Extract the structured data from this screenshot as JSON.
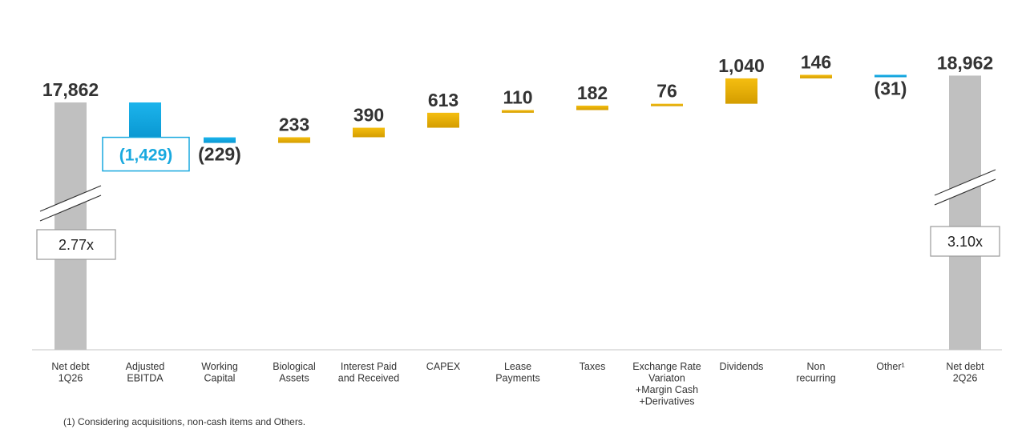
{
  "chart_data": {
    "type": "bar",
    "subtype": "waterfall",
    "title": "",
    "xlabel": "",
    "ylabel": "",
    "categories": [
      "Net debt\n1Q26",
      "Adjusted\nEBITDA",
      "Working\nCapital",
      "Biological\nAssets",
      "Interest Paid\nand Received",
      "CAPEX",
      "Lease\nPayments",
      "Taxes",
      "Exchange Rate\nVariaton\n+Margin Cash\n+Derivatives",
      "Dividends",
      "Non\nrecurring",
      "Other¹",
      "Net debt\n2Q26"
    ],
    "values": [
      17862,
      -1429,
      -229,
      233,
      390,
      613,
      110,
      182,
      76,
      1040,
      146,
      -31,
      18962
    ],
    "value_labels": [
      "17,862",
      "(1,429)",
      "(229)",
      "233",
      "390",
      "613",
      "110",
      "182",
      "76",
      "1,040",
      "146",
      "(31)",
      "18,962"
    ],
    "bar_kinds": [
      "total",
      "decrease",
      "decrease",
      "increase",
      "increase",
      "increase",
      "increase",
      "increase",
      "increase",
      "increase",
      "increase",
      "decrease",
      "total"
    ],
    "ratio_labels": [
      {
        "index": 0,
        "text": "2.77x"
      },
      {
        "index": 12,
        "text": "3.10x"
      }
    ],
    "axis_break": true,
    "grid": false,
    "legend": "none",
    "colors": {
      "total": "#c0c0c0",
      "increase": "#f0b400",
      "increase_dark": "#d9a200",
      "decrease": "#12a8e0",
      "label_text": "#333333",
      "decrease_label": "#19a9df",
      "axis": "#d8d8d8"
    }
  },
  "footnote": "(1) Considering acquisitions, non-cash items and Others."
}
